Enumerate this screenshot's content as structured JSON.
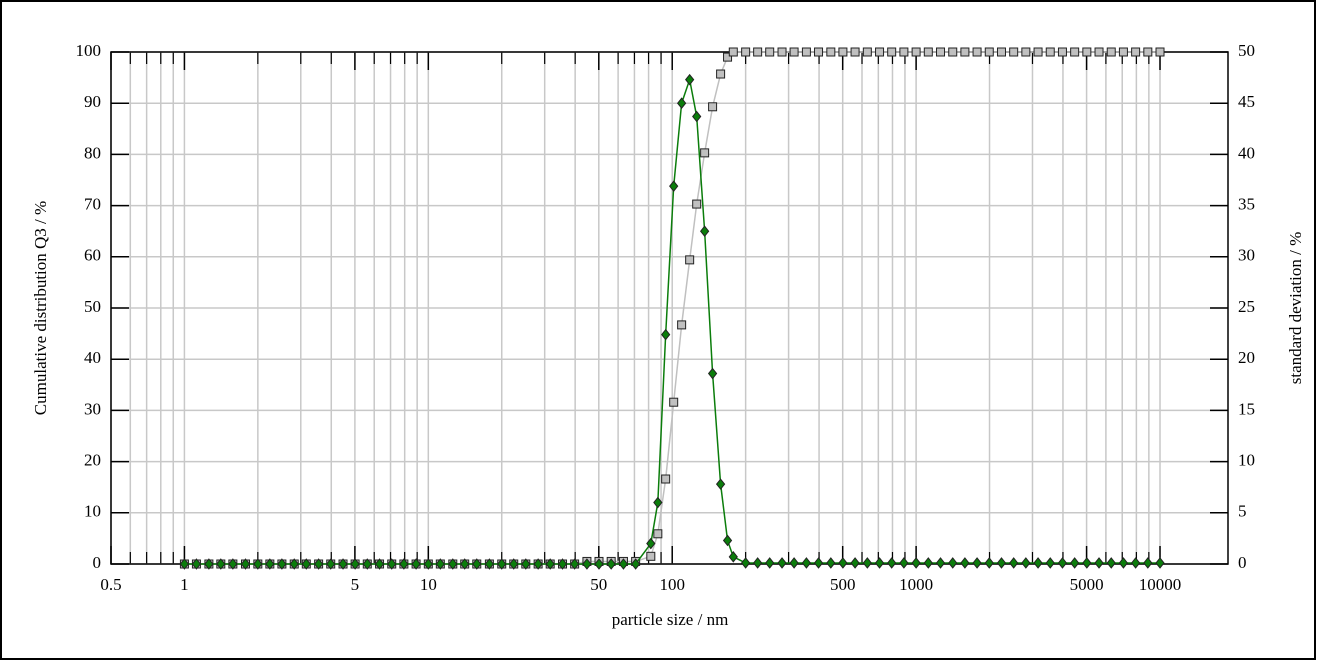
{
  "chart_data": {
    "type": "scatter-line",
    "xlabel": "particle size / nm",
    "ylabel": "Cumulative distribution Q3 / %",
    "y2label": "standard deviation / %",
    "xscale": "log",
    "xlim": [
      0.5,
      19000
    ],
    "xticks": [
      0.5,
      1,
      5,
      10,
      50,
      100,
      500,
      1000,
      5000,
      10000
    ],
    "x_minor_ticks": [
      0.6,
      0.7,
      0.8,
      0.9,
      2,
      3,
      4,
      6,
      7,
      8,
      9,
      20,
      30,
      40,
      60,
      70,
      80,
      90,
      200,
      300,
      400,
      600,
      700,
      800,
      900,
      2000,
      3000,
      4000,
      6000,
      7000,
      8000,
      9000
    ],
    "ylim": [
      0,
      100
    ],
    "yticks": [
      0,
      10,
      20,
      30,
      40,
      50,
      60,
      70,
      80,
      90,
      100
    ],
    "y2lim": [
      0,
      50
    ],
    "y2ticks": [
      0,
      5,
      10,
      15,
      20,
      25,
      30,
      35,
      40,
      45,
      50
    ],
    "grid": true,
    "x": [
      1,
      1.12,
      1.26,
      1.41,
      1.58,
      1.78,
      2,
      2.24,
      2.51,
      2.82,
      3.16,
      3.55,
      3.98,
      4.47,
      5.01,
      5.62,
      6.31,
      7.08,
      7.94,
      8.91,
      10,
      11.2,
      12.6,
      14.1,
      15.8,
      17.8,
      20,
      22.4,
      25.1,
      28.2,
      31.6,
      35.5,
      39.8,
      44.7,
      50.1,
      56.2,
      63.1,
      70.8,
      81.7,
      87.3,
      94,
      101.4,
      109.3,
      117.9,
      126,
      135.8,
      146.4,
      157.9,
      168.6,
      178,
      200,
      224,
      251,
      282,
      316,
      355,
      398,
      447,
      501,
      562,
      631,
      708,
      794,
      891,
      1000,
      1122,
      1259,
      1413,
      1585,
      1778,
      1995,
      2239,
      2512,
      2818,
      3162,
      3548,
      3981,
      4467,
      5012,
      5623,
      6310,
      7079,
      7943,
      8913,
      10000
    ],
    "series": [
      {
        "color": "#c0c0c0",
        "marker": "square",
        "axis": "y",
        "values": [
          0,
          0,
          0,
          0,
          0,
          0,
          0,
          0,
          0,
          0,
          0,
          0,
          0,
          0,
          0,
          0,
          0,
          0,
          0,
          0,
          0,
          0,
          0,
          0,
          0,
          0,
          0,
          0,
          0,
          0,
          0,
          0,
          0,
          0.5,
          0.5,
          0.5,
          0.5,
          0.5,
          1.5,
          5.9,
          16.6,
          31.6,
          46.7,
          59.4,
          70.3,
          80.3,
          89.3,
          95.7,
          99.0,
          100,
          100,
          100,
          100,
          100,
          100,
          100,
          100,
          100,
          100,
          100,
          100,
          100,
          100,
          100,
          100,
          100,
          100,
          100,
          100,
          100,
          100,
          100,
          100,
          100,
          100,
          100,
          100,
          100,
          100,
          100,
          100,
          100,
          100,
          100,
          100
        ]
      },
      {
        "color": "#0b7d0b",
        "marker": "diamond",
        "axis": "y2",
        "values": [
          0,
          0,
          0,
          0,
          0,
          0,
          0,
          0,
          0,
          0,
          0,
          0,
          0,
          0,
          0,
          0,
          0,
          0,
          0,
          0,
          0,
          0,
          0,
          0,
          0,
          0,
          0,
          0,
          0,
          0,
          0,
          0,
          0,
          0,
          0,
          0,
          0,
          0,
          2.0,
          6.0,
          22.4,
          36.9,
          45.0,
          47.3,
          43.7,
          32.5,
          18.6,
          7.8,
          2.3,
          0.7,
          0.1,
          0.1,
          0.1,
          0.1,
          0.1,
          0.1,
          0.1,
          0.1,
          0.1,
          0.1,
          0.1,
          0.1,
          0.1,
          0.1,
          0.1,
          0.1,
          0.1,
          0.1,
          0.1,
          0.1,
          0.1,
          0.1,
          0.1,
          0.1,
          0.1,
          0.1,
          0.1,
          0.1,
          0.1,
          0.1,
          0.1,
          0.1,
          0.1,
          0.1,
          0.1
        ]
      }
    ]
  }
}
